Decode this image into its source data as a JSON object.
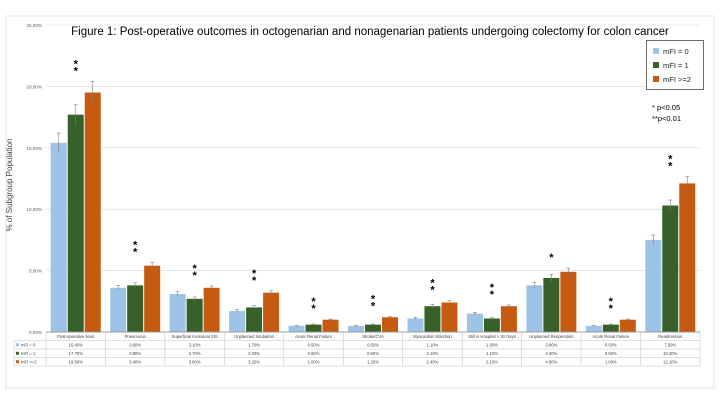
{
  "title": "Figure 1: Post-operative outcomes in octogenarian and nonagenarian patients undergoing colectomy for colon cancer",
  "significance_notes": [
    "*  p<0.05",
    "**p<0.01"
  ],
  "colors": {
    "mfi0": "#9dc3e6",
    "mfi1": "#38612a",
    "mfi2": "#c55a11",
    "grid": "#d9d9d9",
    "axis": "#595959"
  },
  "chart_data": {
    "type": "bar",
    "title": "Figure 1: Post-operative outcomes in octogenarian and nonagenarian patients undergoing colectomy for colon cancer",
    "ylabel": "% of Subgroup Population",
    "xlabel": "",
    "ylim": [
      0,
      25
    ],
    "yticks": [
      "0.00%",
      "5.00%",
      "10.00%",
      "15.00%",
      "20.00%",
      "25.00%"
    ],
    "grid": true,
    "legend_position": "top-right",
    "categories": [
      "Post-operative Ileus",
      "Pneumonia",
      "Superficial Incisional SSI",
      "Unplanned Intubation",
      "Acute Renal Failure",
      "Stroke/CVA",
      "Myocardial Infarction",
      "Still in Hospital > 30 Days",
      "Unplanned Reoperation",
      "Acute Renal Failure",
      "Readmission"
    ],
    "series": [
      {
        "name": "mFI = 0",
        "values": [
          15.4,
          3.6,
          3.1,
          1.7,
          0.5,
          0.5,
          1.1,
          1.5,
          3.8,
          0.5,
          7.5
        ],
        "table_labels": [
          "15.40%",
          "3.60%",
          "3.10%",
          "1.70%",
          "0.50%",
          "0.50%",
          "1.10%",
          "1.50%",
          "3.80%",
          "0.50%",
          "7.50%"
        ]
      },
      {
        "name": "mFI = 1",
        "values": [
          17.7,
          3.8,
          2.7,
          2.0,
          0.6,
          0.6,
          2.1,
          1.1,
          4.4,
          0.6,
          10.3
        ],
        "table_labels": [
          "17.70%",
          "3.80%",
          "2.70%",
          "2.00%",
          "0.60%",
          "0.60%",
          "2.10%",
          "1.10%",
          "4.40%",
          "0.60%",
          "10.30%"
        ]
      },
      {
        "name": "mFI >=2",
        "values": [
          19.5,
          5.4,
          3.6,
          3.2,
          1.0,
          1.2,
          2.4,
          2.1,
          4.9,
          1.0,
          12.1
        ],
        "table_labels": [
          "19.50%",
          "5.40%",
          "3.60%",
          "3.20%",
          "1.00%",
          "1.20%",
          "2.40%",
          "2.10%",
          "4.90%",
          "1.00%",
          "12.10%"
        ]
      }
    ],
    "error_bars": [
      [
        0.8,
        0.2,
        0.2,
        0.15,
        0.05,
        0.05,
        0.1,
        0.1,
        0.25,
        0.05,
        0.4
      ],
      [
        0.8,
        0.2,
        0.15,
        0.15,
        0.05,
        0.05,
        0.15,
        0.1,
        0.3,
        0.05,
        0.45
      ],
      [
        0.9,
        0.25,
        0.15,
        0.15,
        0.05,
        0.05,
        0.15,
        0.1,
        0.3,
        0.05,
        0.55
      ]
    ],
    "significance": [
      "**",
      "**",
      "**",
      "**",
      "**",
      "**",
      "**",
      "**",
      "*",
      "**",
      "**"
    ]
  }
}
